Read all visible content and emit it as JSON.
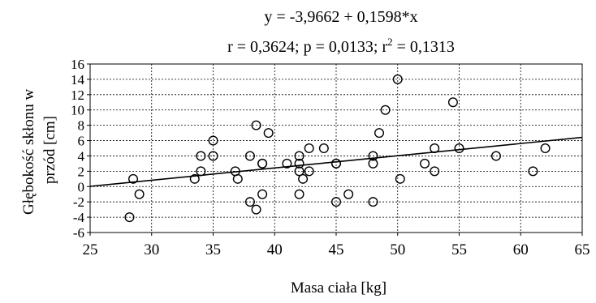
{
  "chart_data": {
    "type": "scatter",
    "title": "y = -3,9662 + 0,1598*x",
    "subtitle": {
      "prefix": "r = 0,3624; p = 0,0133; r",
      "sup": "2",
      "suffix": " = 0,1313"
    },
    "xlabel": "Masa ciała [kg]",
    "ylabel_lines": [
      "Głębokość skłonu w",
      "przód [cm]"
    ],
    "xlim": [
      25,
      65
    ],
    "ylim": [
      -6,
      16
    ],
    "x_ticks": [
      "25",
      "30",
      "35",
      "40",
      "45",
      "50",
      "55",
      "60",
      "65"
    ],
    "y_ticks": [
      "-6",
      "-4",
      "-2",
      "0",
      "2",
      "4",
      "6",
      "8",
      "10",
      "12",
      "14",
      "16"
    ],
    "grid": true,
    "regression": {
      "intercept": -3.9662,
      "slope": 0.1598
    },
    "points": [
      {
        "x": 28.2,
        "y": -4
      },
      {
        "x": 28.5,
        "y": 1
      },
      {
        "x": 29,
        "y": -1
      },
      {
        "x": 33.5,
        "y": 1
      },
      {
        "x": 34,
        "y": 2
      },
      {
        "x": 34,
        "y": 4
      },
      {
        "x": 35,
        "y": 4
      },
      {
        "x": 35,
        "y": 6
      },
      {
        "x": 36.8,
        "y": 2
      },
      {
        "x": 37,
        "y": 1
      },
      {
        "x": 38,
        "y": 4
      },
      {
        "x": 38,
        "y": -2
      },
      {
        "x": 38.5,
        "y": -3
      },
      {
        "x": 38.5,
        "y": 8
      },
      {
        "x": 39,
        "y": 3
      },
      {
        "x": 39,
        "y": 3
      },
      {
        "x": 39,
        "y": -1
      },
      {
        "x": 39.5,
        "y": 7
      },
      {
        "x": 41,
        "y": 3
      },
      {
        "x": 42,
        "y": 4
      },
      {
        "x": 42,
        "y": 3
      },
      {
        "x": 42,
        "y": 2
      },
      {
        "x": 42,
        "y": -1
      },
      {
        "x": 42.3,
        "y": 1
      },
      {
        "x": 42.8,
        "y": 2
      },
      {
        "x": 42.8,
        "y": 5
      },
      {
        "x": 44,
        "y": 5
      },
      {
        "x": 45,
        "y": 3
      },
      {
        "x": 45,
        "y": 3
      },
      {
        "x": 45,
        "y": -2
      },
      {
        "x": 46,
        "y": -1
      },
      {
        "x": 48,
        "y": 3
      },
      {
        "x": 48,
        "y": 4
      },
      {
        "x": 48,
        "y": -2
      },
      {
        "x": 48.5,
        "y": 7
      },
      {
        "x": 49,
        "y": 10
      },
      {
        "x": 50,
        "y": 14
      },
      {
        "x": 50.2,
        "y": 1
      },
      {
        "x": 52.2,
        "y": 3
      },
      {
        "x": 53,
        "y": 2
      },
      {
        "x": 53,
        "y": 5
      },
      {
        "x": 54.5,
        "y": 11
      },
      {
        "x": 55,
        "y": 5
      },
      {
        "x": 58,
        "y": 4
      },
      {
        "x": 61,
        "y": 2
      },
      {
        "x": 62,
        "y": 5
      }
    ]
  }
}
